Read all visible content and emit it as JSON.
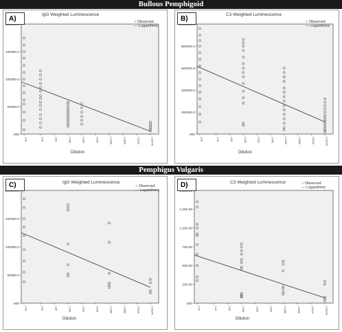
{
  "banners": {
    "top": "Bullous Pemphigoid",
    "middle": "Pemphigus Vulgaris"
  },
  "chart_data": [
    {
      "type": "scatter",
      "panel": "A)",
      "title": "IgG Weighted Luminescence",
      "xlabel": "Dilution",
      "legend": [
        "Observed",
        "Logarithmic"
      ],
      "legend_position": "top-right",
      "ylim": [
        0,
        200000
      ],
      "yticks": [
        0,
        50000,
        100000,
        150000,
        200000
      ],
      "ytick_labels": [
        ".000",
        "50000.0",
        "100000.0",
        "150000.0",
        "200000.0"
      ],
      "x_tick_labels": [
        "1:20",
        "1:40",
        "1:80",
        "1:160",
        "1:320",
        "1:640",
        "1:1280",
        "1:2560",
        "1:5120",
        "1:10240"
      ],
      "x_tick_positions": [
        1,
        7,
        12,
        17,
        22,
        27,
        32,
        37,
        42,
        47
      ],
      "xlim": [
        0,
        50
      ],
      "series": [
        {
          "name": "Observed",
          "points": [
            [
              1,
              175000
            ],
            [
              1,
              162000
            ],
            [
              1,
              150000
            ],
            [
              1,
              138000
            ],
            [
              1,
              125000
            ],
            [
              1,
              112000
            ],
            [
              1,
              100000
            ],
            [
              1,
              88000
            ],
            [
              1,
              75000
            ],
            [
              1,
              62000
            ],
            [
              1,
              55000
            ],
            [
              1,
              40000
            ],
            [
              1,
              25000
            ],
            [
              1,
              8000
            ],
            [
              7,
              115000
            ],
            [
              7,
              108000
            ],
            [
              7,
              100000
            ],
            [
              7,
              92000
            ],
            [
              7,
              85000
            ],
            [
              7,
              78000
            ],
            [
              7,
              70000
            ],
            [
              7,
              65000
            ],
            [
              7,
              58000
            ],
            [
              7,
              52000
            ],
            [
              7,
              45000
            ],
            [
              7,
              35000
            ],
            [
              7,
              28000
            ],
            [
              7,
              20000
            ],
            [
              7,
              12000
            ],
            [
              17,
              58000
            ],
            [
              17,
              55000
            ],
            [
              17,
              50000
            ],
            [
              17,
              46000
            ],
            [
              17,
              42000
            ],
            [
              17,
              38000
            ],
            [
              17,
              34000
            ],
            [
              17,
              30000
            ],
            [
              17,
              26000
            ],
            [
              17,
              22000
            ],
            [
              17,
              18000
            ],
            [
              17,
              14000
            ],
            [
              22,
              55000
            ],
            [
              22,
              48000
            ],
            [
              22,
              40000
            ],
            [
              22,
              32000
            ],
            [
              22,
              25000
            ],
            [
              22,
              18000
            ],
            [
              47,
              22000
            ],
            [
              47,
              18000
            ],
            [
              47,
              15000
            ],
            [
              47,
              12000
            ],
            [
              47,
              9000
            ],
            [
              47,
              6000
            ]
          ]
        },
        {
          "name": "Logarithmic",
          "line": [
            [
              0,
              95000
            ],
            [
              47,
              5000
            ]
          ]
        }
      ]
    },
    {
      "type": "scatter",
      "panel": "B)",
      "title": "C3 Weighted Luminescence",
      "xlabel": "Dilution",
      "legend": [
        "Observed",
        "Logarithmic"
      ],
      "legend_position": "top-right",
      "ylim": [
        0,
        1000000
      ],
      "yticks": [
        0,
        200000,
        400000,
        600000,
        800000,
        1000000
      ],
      "ytick_labels": [
        ".000",
        "200000.0",
        "400000.0",
        "600000.0",
        "800000.0",
        "1000000.0"
      ],
      "x_tick_labels": [
        "1:20",
        "1:40",
        "1:80",
        "1:160",
        "1:320",
        "1:640",
        "1:1280",
        "1:2560",
        "1:5120",
        "1:10240"
      ],
      "x_tick_positions": [
        1,
        7,
        12,
        17,
        22,
        27,
        32,
        37,
        42,
        47
      ],
      "xlim": [
        0,
        50
      ],
      "series": [
        {
          "name": "Observed",
          "points": [
            [
              1,
              960000
            ],
            [
              1,
              900000
            ],
            [
              1,
              850000
            ],
            [
              1,
              800000
            ],
            [
              1,
              740000
            ],
            [
              1,
              680000
            ],
            [
              1,
              620000
            ],
            [
              1,
              560000
            ],
            [
              1,
              500000
            ],
            [
              1,
              440000
            ],
            [
              1,
              380000
            ],
            [
              1,
              320000
            ],
            [
              1,
              250000
            ],
            [
              1,
              180000
            ],
            [
              1,
              110000
            ],
            [
              17,
              860000
            ],
            [
              17,
              830000
            ],
            [
              17,
              800000
            ],
            [
              17,
              760000
            ],
            [
              17,
              700000
            ],
            [
              17,
              640000
            ],
            [
              17,
              600000
            ],
            [
              17,
              560000
            ],
            [
              17,
              520000
            ],
            [
              17,
              460000
            ],
            [
              17,
              390000
            ],
            [
              17,
              330000
            ],
            [
              17,
              280000
            ],
            [
              17,
              100000
            ],
            [
              17,
              80000
            ],
            [
              32,
              600000
            ],
            [
              32,
              560000
            ],
            [
              32,
              520000
            ],
            [
              32,
              480000
            ],
            [
              32,
              420000
            ],
            [
              32,
              380000
            ],
            [
              32,
              340000
            ],
            [
              32,
              300000
            ],
            [
              32,
              260000
            ],
            [
              32,
              220000
            ],
            [
              32,
              180000
            ],
            [
              32,
              140000
            ],
            [
              32,
              100000
            ],
            [
              32,
              60000
            ],
            [
              32,
              40000
            ],
            [
              47,
              320000
            ],
            [
              47,
              290000
            ],
            [
              47,
              260000
            ],
            [
              47,
              230000
            ],
            [
              47,
              200000
            ],
            [
              47,
              170000
            ],
            [
              47,
              150000
            ],
            [
              47,
              130000
            ],
            [
              47,
              110000
            ],
            [
              47,
              90000
            ],
            [
              47,
              70000
            ],
            [
              47,
              50000
            ],
            [
              47,
              35000
            ],
            [
              47,
              20000
            ]
          ]
        },
        {
          "name": "Logarithmic",
          "line": [
            [
              0,
              615000
            ],
            [
              47,
              110000
            ]
          ]
        }
      ]
    },
    {
      "type": "scatter",
      "panel": "C)",
      "title": "IgG Weighted Luminescence",
      "xlabel": "Dilution",
      "legend": [
        "Observed",
        "Logarithmic"
      ],
      "legend_position": "top-right",
      "ylim": [
        0,
        200000
      ],
      "yticks": [
        0,
        50000,
        100000,
        150000,
        200000
      ],
      "ytick_labels": [
        ".000",
        "50000.0",
        "100000.0",
        "150000.0",
        "200000.0"
      ],
      "x_tick_labels": [
        "1:20",
        "1:40",
        "1:80",
        "1:160",
        "1:320",
        "1:640",
        "1:1280",
        "1:2560",
        "1:5120",
        "1:10240"
      ],
      "x_tick_positions": [
        1,
        7,
        12,
        17,
        22,
        27,
        32,
        37,
        42,
        47
      ],
      "xlim": [
        0,
        50
      ],
      "series": [
        {
          "name": "Observed",
          "points": [
            [
              1,
              185000
            ],
            [
              1,
              170000
            ],
            [
              1,
              150000
            ],
            [
              1,
              135000
            ],
            [
              1,
              120000
            ],
            [
              1,
              95000
            ],
            [
              1,
              75000
            ],
            [
              1,
              55000
            ],
            [
              1,
              38000
            ],
            [
              17,
              175000
            ],
            [
              17,
              170000
            ],
            [
              17,
              165000
            ],
            [
              17,
              105000
            ],
            [
              17,
              68000
            ],
            [
              17,
              52000
            ],
            [
              17,
              48000
            ],
            [
              32,
              142000
            ],
            [
              32,
              108000
            ],
            [
              32,
              53000
            ],
            [
              32,
              36000
            ],
            [
              32,
              32000
            ],
            [
              32,
              28000
            ],
            [
              47,
              42000
            ],
            [
              47,
              36000
            ],
            [
              47,
              22000
            ],
            [
              47,
              18000
            ]
          ]
        },
        {
          "name": "Logarithmic",
          "line": [
            [
              0,
              125000
            ],
            [
              47,
              28000
            ]
          ]
        }
      ]
    },
    {
      "type": "scatter",
      "panel": "D)",
      "title": "C3 Weighted Luminescence",
      "xlabel": "Dilution",
      "legend": [
        "Observed",
        "Logarithmic"
      ],
      "legend_position": "top-right",
      "ylim": [
        0,
        1500
      ],
      "yticks": [
        0,
        250,
        500,
        750,
        1000,
        1250,
        1500
      ],
      "ytick_labels": [
        ".000",
        "250.00",
        "500.00",
        "750.00",
        "1,000.00",
        "1,250.00",
        "1,500.00"
      ],
      "x_tick_labels": [
        "1:20",
        "1:40",
        "1:80",
        "1:160",
        "1:320",
        "1:640",
        "1:1280",
        "1:2560",
        "1:5120",
        "1:10240"
      ],
      "x_tick_positions": [
        1,
        7,
        12,
        17,
        22,
        27,
        32,
        37,
        42,
        47
      ],
      "xlim": [
        0,
        50
      ],
      "series": [
        {
          "name": "Observed",
          "points": [
            [
              1,
              1350
            ],
            [
              1,
              1280
            ],
            [
              1,
              1050
            ],
            [
              1,
              1000
            ],
            [
              1,
              920
            ],
            [
              1,
              900
            ],
            [
              1,
              780
            ],
            [
              1,
              650
            ],
            [
              1,
              500
            ],
            [
              1,
              350
            ],
            [
              1,
              300
            ],
            [
              17,
              790
            ],
            [
              17,
              750
            ],
            [
              17,
              700
            ],
            [
              17,
              650
            ],
            [
              17,
              580
            ],
            [
              17,
              540
            ],
            [
              17,
              480
            ],
            [
              17,
              450
            ],
            [
              17,
              130
            ],
            [
              17,
              110
            ],
            [
              17,
              90
            ],
            [
              17,
              80
            ],
            [
              32,
              560
            ],
            [
              32,
              520
            ],
            [
              32,
              430
            ],
            [
              32,
              220
            ],
            [
              32,
              190
            ],
            [
              32,
              150
            ],
            [
              32,
              120
            ],
            [
              47,
              290
            ],
            [
              47,
              250
            ],
            [
              47,
              80
            ],
            [
              47,
              60
            ],
            [
              47,
              30
            ]
          ]
        },
        {
          "name": "Logarithmic",
          "line": [
            [
              0,
              640
            ],
            [
              47,
              70
            ]
          ]
        }
      ]
    }
  ]
}
